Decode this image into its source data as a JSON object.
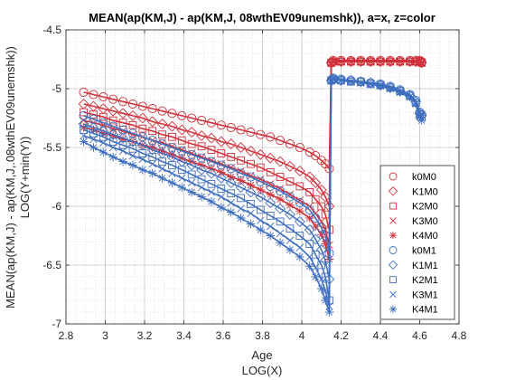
{
  "chart_data": {
    "type": "line",
    "title": "MEAN(ap(KM,J) - ap(KM,J, 08wthEV09unemshk)), a=x, z=color",
    "xlabel": [
      "Age",
      "LOG(X)"
    ],
    "ylabel": [
      "MEAN(ap(KM,J) - ap(KM,J,.08wthEV09unemshk))",
      "LOG(Y+min(Y))"
    ],
    "xlim": [
      2.8,
      4.8
    ],
    "ylim": [
      -7,
      -4.5
    ],
    "xticks": [
      2.8,
      3,
      3.2,
      3.4,
      3.6,
      3.8,
      4,
      4.2,
      4.4,
      4.6,
      4.8
    ],
    "xtick_labels": [
      "2.8",
      "3",
      "3.2",
      "3.4",
      "3.6",
      "3.8",
      "4",
      "4.2",
      "4.4",
      "4.6",
      "4.8"
    ],
    "yticks": [
      -7,
      -6.5,
      -6,
      -5.5,
      -5,
      -4.5
    ],
    "ytick_labels": [
      "-7",
      "-6.5",
      "-6",
      "-5.5",
      "-5",
      "-4.5"
    ],
    "grid": true,
    "minor_grid": true,
    "legend_position": "bottom-right",
    "colors": {
      "z1": "#d0313a",
      "z2": "#3f6fbf"
    },
    "x": [
      2.89,
      2.94,
      2.99,
      3.04,
      3.09,
      3.14,
      3.19,
      3.24,
      3.29,
      3.34,
      3.39,
      3.44,
      3.49,
      3.54,
      3.59,
      3.64,
      3.69,
      3.74,
      3.79,
      3.84,
      3.89,
      3.94,
      3.99,
      4.04,
      4.07,
      4.1,
      4.12,
      4.14,
      4.15,
      4.16,
      4.2,
      4.25,
      4.3,
      4.35,
      4.4,
      4.45,
      4.5,
      4.55,
      4.58,
      4.6,
      4.61
    ],
    "series": [
      {
        "name": "k0M0",
        "marker": "circle",
        "color": "#d0313a",
        "values": [
          -5.03,
          -5.05,
          -5.07,
          -5.09,
          -5.11,
          -5.13,
          -5.15,
          -5.17,
          -5.19,
          -5.21,
          -5.23,
          -5.25,
          -5.27,
          -5.29,
          -5.31,
          -5.33,
          -5.35,
          -5.37,
          -5.39,
          -5.41,
          -5.44,
          -5.47,
          -5.5,
          -5.54,
          -5.57,
          -5.61,
          -5.64,
          -5.68,
          -4.78,
          -4.76,
          -4.76,
          -4.76,
          -4.76,
          -4.76,
          -4.76,
          -4.76,
          -4.76,
          -4.76,
          -4.76,
          -4.76,
          -4.77
        ]
      },
      {
        "name": "K1M0",
        "marker": "diamond",
        "color": "#d0313a",
        "values": [
          -5.13,
          -5.15,
          -5.17,
          -5.19,
          -5.21,
          -5.23,
          -5.25,
          -5.28,
          -5.3,
          -5.32,
          -5.35,
          -5.37,
          -5.4,
          -5.42,
          -5.45,
          -5.47,
          -5.5,
          -5.53,
          -5.56,
          -5.59,
          -5.62,
          -5.66,
          -5.7,
          -5.75,
          -5.8,
          -5.86,
          -5.92,
          -6.0,
          -4.78,
          -4.77,
          -4.77,
          -4.77,
          -4.77,
          -4.77,
          -4.77,
          -4.77,
          -4.77,
          -4.77,
          -4.77,
          -4.77,
          -4.78
        ]
      },
      {
        "name": "K2M0",
        "marker": "square",
        "color": "#d0313a",
        "values": [
          -5.2,
          -5.22,
          -5.24,
          -5.27,
          -5.29,
          -5.31,
          -5.34,
          -5.36,
          -5.39,
          -5.41,
          -5.44,
          -5.47,
          -5.49,
          -5.52,
          -5.55,
          -5.58,
          -5.61,
          -5.64,
          -5.67,
          -5.71,
          -5.75,
          -5.79,
          -5.83,
          -5.88,
          -5.94,
          -6.0,
          -6.07,
          -6.2,
          -4.78,
          -4.77,
          -4.77,
          -4.77,
          -4.77,
          -4.77,
          -4.77,
          -4.77,
          -4.77,
          -4.77,
          -4.77,
          -4.77,
          -4.78
        ]
      },
      {
        "name": "K3M0",
        "marker": "x",
        "color": "#d0313a",
        "values": [
          -5.27,
          -5.29,
          -5.31,
          -5.34,
          -5.36,
          -5.39,
          -5.41,
          -5.44,
          -5.46,
          -5.49,
          -5.52,
          -5.55,
          -5.58,
          -5.61,
          -5.64,
          -5.67,
          -5.7,
          -5.74,
          -5.77,
          -5.81,
          -5.85,
          -5.9,
          -5.95,
          -6.0,
          -6.06,
          -6.13,
          -6.2,
          -6.33,
          -4.78,
          -4.77,
          -4.77,
          -4.77,
          -4.77,
          -4.77,
          -4.77,
          -4.77,
          -4.77,
          -4.77,
          -4.77,
          -4.77,
          -4.78
        ]
      },
      {
        "name": "K4M0",
        "marker": "star",
        "color": "#d0313a",
        "values": [
          -5.33,
          -5.35,
          -5.38,
          -5.4,
          -5.43,
          -5.45,
          -5.48,
          -5.5,
          -5.53,
          -5.56,
          -5.59,
          -5.62,
          -5.65,
          -5.68,
          -5.71,
          -5.75,
          -5.78,
          -5.82,
          -5.86,
          -5.9,
          -5.94,
          -5.99,
          -6.04,
          -6.1,
          -6.17,
          -6.24,
          -6.32,
          -6.45,
          -4.78,
          -4.77,
          -4.77,
          -4.77,
          -4.77,
          -4.77,
          -4.77,
          -4.77,
          -4.77,
          -4.77,
          -4.77,
          -4.77,
          -4.78
        ]
      },
      {
        "name": "k0M1",
        "marker": "circle",
        "color": "#3f6fbf",
        "values": [
          -5.23,
          -5.26,
          -5.29,
          -5.32,
          -5.35,
          -5.38,
          -5.41,
          -5.44,
          -5.47,
          -5.5,
          -5.53,
          -5.56,
          -5.59,
          -5.62,
          -5.65,
          -5.68,
          -5.72,
          -5.75,
          -5.79,
          -5.83,
          -5.87,
          -5.92,
          -5.97,
          -6.03,
          -6.1,
          -6.18,
          -6.25,
          -6.4,
          -4.93,
          -4.91,
          -4.92,
          -4.93,
          -4.94,
          -4.95,
          -4.96,
          -4.98,
          -5.01,
          -5.05,
          -5.1,
          -5.2,
          -5.22
        ]
      },
      {
        "name": "K1M1",
        "marker": "diamond",
        "color": "#3f6fbf",
        "values": [
          -5.3,
          -5.33,
          -5.36,
          -5.39,
          -5.42,
          -5.45,
          -5.48,
          -5.52,
          -5.55,
          -5.58,
          -5.62,
          -5.65,
          -5.69,
          -5.72,
          -5.76,
          -5.8,
          -5.84,
          -5.88,
          -5.92,
          -5.97,
          -6.02,
          -6.07,
          -6.13,
          -6.2,
          -6.28,
          -6.37,
          -6.46,
          -6.62,
          -4.93,
          -4.92,
          -4.93,
          -4.93,
          -4.94,
          -4.95,
          -4.97,
          -4.99,
          -5.02,
          -5.06,
          -5.11,
          -5.21,
          -5.23
        ]
      },
      {
        "name": "K2M1",
        "marker": "square",
        "color": "#3f6fbf",
        "values": [
          -5.35,
          -5.38,
          -5.41,
          -5.45,
          -5.48,
          -5.51,
          -5.55,
          -5.58,
          -5.62,
          -5.65,
          -5.69,
          -5.73,
          -5.77,
          -5.81,
          -5.85,
          -5.89,
          -5.93,
          -5.98,
          -6.03,
          -6.08,
          -6.13,
          -6.19,
          -6.25,
          -6.32,
          -6.41,
          -6.5,
          -6.6,
          -6.8,
          -4.93,
          -4.92,
          -4.93,
          -4.94,
          -4.94,
          -4.96,
          -4.97,
          -4.99,
          -5.02,
          -5.06,
          -5.12,
          -5.22,
          -5.24
        ]
      },
      {
        "name": "K3M1",
        "marker": "x",
        "color": "#3f6fbf",
        "values": [
          -5.4,
          -5.43,
          -5.46,
          -5.5,
          -5.53,
          -5.57,
          -5.6,
          -5.64,
          -5.68,
          -5.72,
          -5.76,
          -5.8,
          -5.84,
          -5.88,
          -5.92,
          -5.97,
          -6.02,
          -6.06,
          -6.12,
          -6.17,
          -6.23,
          -6.29,
          -6.35,
          -6.43,
          -6.52,
          -6.62,
          -6.72,
          -6.85,
          -4.93,
          -4.92,
          -4.93,
          -4.94,
          -4.95,
          -4.96,
          -4.97,
          -5.0,
          -5.03,
          -5.07,
          -5.12,
          -5.23,
          -5.25
        ]
      },
      {
        "name": "K4M1",
        "marker": "star",
        "color": "#3f6fbf",
        "values": [
          -5.45,
          -5.5,
          -5.54,
          -5.58,
          -5.62,
          -5.65,
          -5.69,
          -5.72,
          -5.76,
          -5.8,
          -5.84,
          -5.88,
          -5.92,
          -5.96,
          -6.01,
          -6.05,
          -6.1,
          -6.15,
          -6.2,
          -6.25,
          -6.31,
          -6.37,
          -6.43,
          -6.51,
          -6.6,
          -6.7,
          -6.8,
          -6.9,
          -4.93,
          -4.92,
          -4.93,
          -4.94,
          -4.95,
          -4.96,
          -4.98,
          -5.0,
          -5.03,
          -5.07,
          -5.13,
          -5.24,
          -5.27
        ]
      }
    ]
  }
}
